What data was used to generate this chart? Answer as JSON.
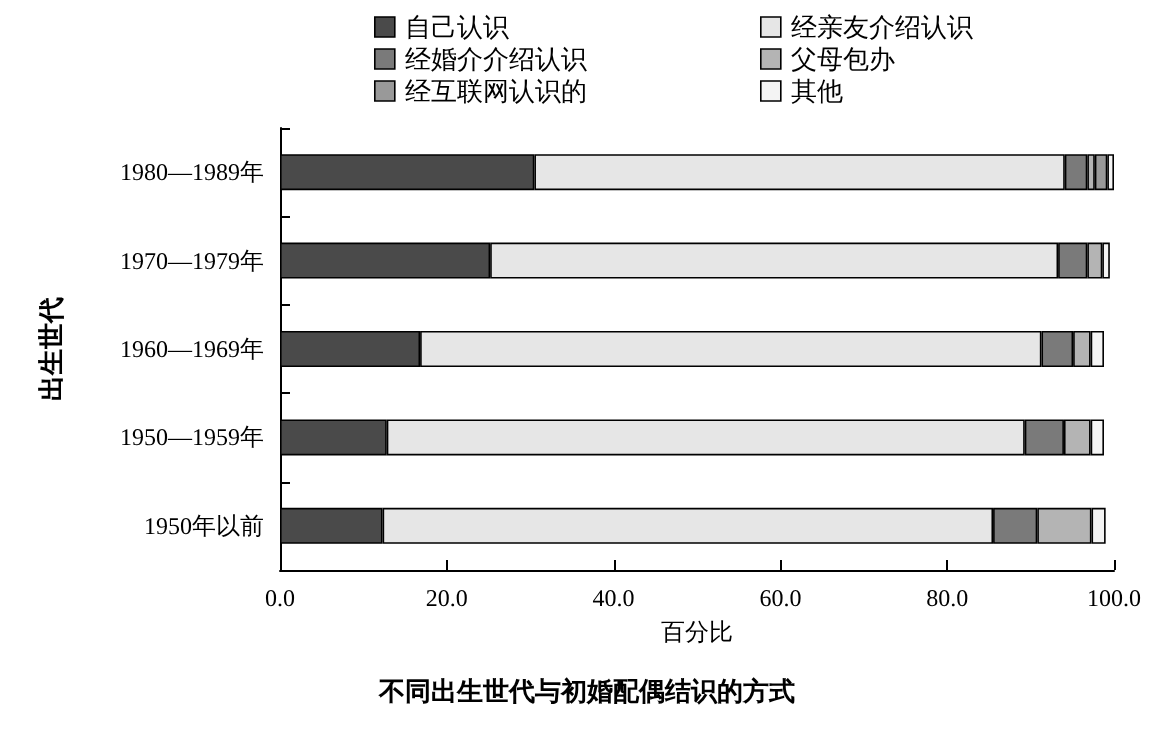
{
  "chart_data": {
    "type": "bar",
    "orientation": "horizontal",
    "stacked": true,
    "title": "不同出生世代与初婚配偶结识的方式",
    "xlabel": "百分比",
    "ylabel": "出生世代",
    "categories": [
      "1980—1989年",
      "1970—1979年",
      "1960—1969年",
      "1950—1959年",
      "1950年以前"
    ],
    "series": [
      {
        "name": "自己认识",
        "color": "#4a4a4a",
        "values": [
          30.5,
          25.2,
          16.8,
          12.8,
          12.3
        ]
      },
      {
        "name": "经亲友介绍认识",
        "color": "#e6e6e6",
        "values": [
          63.6,
          68.1,
          74.5,
          76.5,
          73.2
        ]
      },
      {
        "name": "经婚介介绍认识",
        "color": "#7a7a7a",
        "values": [
          2.7,
          3.5,
          3.8,
          4.7,
          5.3
        ]
      },
      {
        "name": "父母包办",
        "color": "#b4b4b4",
        "values": [
          0.9,
          1.8,
          2.1,
          3.2,
          6.5
        ]
      },
      {
        "name": "经互联网认识的",
        "color": "#999999",
        "values": [
          1.5,
          null,
          null,
          null,
          null
        ]
      },
      {
        "name": "其他",
        "color": "#f4f4f4",
        "values": [
          0.8,
          0.9,
          1.6,
          1.6,
          1.7
        ]
      }
    ],
    "xlim": [
      0,
      100
    ],
    "xticks": [
      {
        "value": 0,
        "label": "0.0"
      },
      {
        "value": 20,
        "label": "20.0"
      },
      {
        "value": 40,
        "label": "40.0"
      },
      {
        "value": 60,
        "label": "60.0"
      },
      {
        "value": 80,
        "label": "80.0"
      },
      {
        "value": 100,
        "label": "100.0"
      }
    ],
    "grid": false,
    "legend": "top"
  }
}
